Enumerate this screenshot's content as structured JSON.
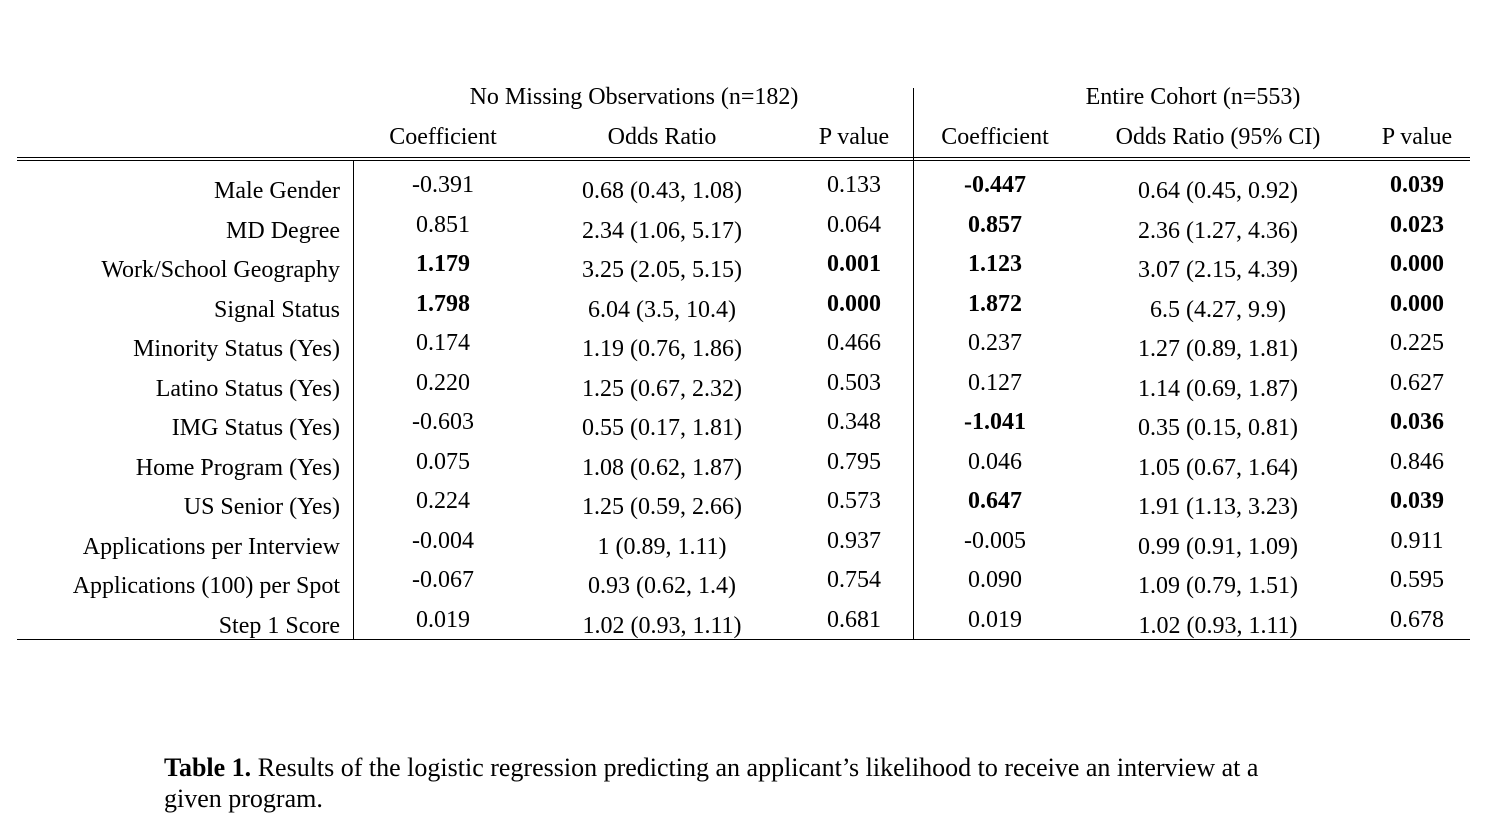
{
  "table": {
    "group_headers": [
      "No Missing Observations (n=182)",
      "Entire Cohort (n=553)"
    ],
    "column_headers": [
      "Coefficient",
      "Odds Ratio",
      "P value",
      "Coefficient",
      "Odds Ratio (95% CI)",
      "P value"
    ],
    "rows": [
      {
        "label": "Male Gender",
        "cells": [
          {
            "v": "-0.391",
            "b": false
          },
          {
            "v": "0.68 (0.43, 1.08)",
            "b": false
          },
          {
            "v": "0.133",
            "b": false
          },
          {
            "v": "-0.447",
            "b": true
          },
          {
            "v": "0.64 (0.45, 0.92)",
            "b": false
          },
          {
            "v": "0.039",
            "b": true
          }
        ]
      },
      {
        "label": "MD Degree",
        "cells": [
          {
            "v": "0.851",
            "b": false
          },
          {
            "v": "2.34 (1.06, 5.17)",
            "b": false
          },
          {
            "v": "0.064",
            "b": false
          },
          {
            "v": "0.857",
            "b": true
          },
          {
            "v": "2.36 (1.27, 4.36)",
            "b": false
          },
          {
            "v": "0.023",
            "b": true
          }
        ]
      },
      {
        "label": "Work/School Geography",
        "cells": [
          {
            "v": "1.179",
            "b": true
          },
          {
            "v": "3.25 (2.05, 5.15)",
            "b": false
          },
          {
            "v": "0.001",
            "b": true
          },
          {
            "v": "1.123",
            "b": true
          },
          {
            "v": "3.07 (2.15, 4.39)",
            "b": false
          },
          {
            "v": "0.000",
            "b": true
          }
        ]
      },
      {
        "label": "Signal Status",
        "cells": [
          {
            "v": "1.798",
            "b": true
          },
          {
            "v": "6.04 (3.5, 10.4)",
            "b": false
          },
          {
            "v": "0.000",
            "b": true
          },
          {
            "v": "1.872",
            "b": true
          },
          {
            "v": "6.5 (4.27, 9.9)",
            "b": false
          },
          {
            "v": "0.000",
            "b": true
          }
        ]
      },
      {
        "label": "Minority Status (Yes)",
        "cells": [
          {
            "v": "0.174",
            "b": false
          },
          {
            "v": "1.19 (0.76, 1.86)",
            "b": false
          },
          {
            "v": "0.466",
            "b": false
          },
          {
            "v": "0.237",
            "b": false
          },
          {
            "v": "1.27 (0.89, 1.81)",
            "b": false
          },
          {
            "v": "0.225",
            "b": false
          }
        ]
      },
      {
        "label": "Latino Status (Yes)",
        "cells": [
          {
            "v": "0.220",
            "b": false
          },
          {
            "v": "1.25 (0.67, 2.32)",
            "b": false
          },
          {
            "v": "0.503",
            "b": false
          },
          {
            "v": "0.127",
            "b": false
          },
          {
            "v": "1.14 (0.69, 1.87)",
            "b": false
          },
          {
            "v": "0.627",
            "b": false
          }
        ]
      },
      {
        "label": "IMG Status (Yes)",
        "cells": [
          {
            "v": "-0.603",
            "b": false
          },
          {
            "v": "0.55 (0.17, 1.81)",
            "b": false
          },
          {
            "v": "0.348",
            "b": false
          },
          {
            "v": "-1.041",
            "b": true
          },
          {
            "v": "0.35 (0.15, 0.81)",
            "b": false
          },
          {
            "v": "0.036",
            "b": true
          }
        ]
      },
      {
        "label": "Home Program (Yes)",
        "cells": [
          {
            "v": "0.075",
            "b": false
          },
          {
            "v": "1.08 (0.62, 1.87)",
            "b": false
          },
          {
            "v": "0.795",
            "b": false
          },
          {
            "v": "0.046",
            "b": false
          },
          {
            "v": "1.05 (0.67, 1.64)",
            "b": false
          },
          {
            "v": "0.846",
            "b": false
          }
        ]
      },
      {
        "label": "US Senior (Yes)",
        "cells": [
          {
            "v": "0.224",
            "b": false
          },
          {
            "v": "1.25 (0.59, 2.66)",
            "b": false
          },
          {
            "v": "0.573",
            "b": false
          },
          {
            "v": "0.647",
            "b": true
          },
          {
            "v": "1.91 (1.13, 3.23)",
            "b": false
          },
          {
            "v": "0.039",
            "b": true
          }
        ]
      },
      {
        "label": "Applications per Interview",
        "cells": [
          {
            "v": "-0.004",
            "b": false
          },
          {
            "v": "1 (0.89, 1.11)",
            "b": false
          },
          {
            "v": "0.937",
            "b": false
          },
          {
            "v": "-0.005",
            "b": false
          },
          {
            "v": "0.99 (0.91, 1.09)",
            "b": false
          },
          {
            "v": "0.911",
            "b": false
          }
        ]
      },
      {
        "label": "Applications (100) per Spot",
        "cells": [
          {
            "v": "-0.067",
            "b": false
          },
          {
            "v": "0.93 (0.62, 1.4)",
            "b": false
          },
          {
            "v": "0.754",
            "b": false
          },
          {
            "v": "0.090",
            "b": false
          },
          {
            "v": "1.09 (0.79, 1.51)",
            "b": false
          },
          {
            "v": "0.595",
            "b": false
          }
        ]
      },
      {
        "label": "Step 1 Score",
        "cells": [
          {
            "v": "0.019",
            "b": false
          },
          {
            "v": "1.02 (0.93, 1.11)",
            "b": false
          },
          {
            "v": "0.681",
            "b": false
          },
          {
            "v": "0.019",
            "b": false
          },
          {
            "v": "1.02 (0.93, 1.11)",
            "b": false
          },
          {
            "v": "0.678",
            "b": false
          }
        ]
      }
    ]
  },
  "caption": {
    "label": "Table 1.",
    "text": " Results of the logistic regression predicting an applicant’s likelihood to receive an interview at a given program."
  }
}
